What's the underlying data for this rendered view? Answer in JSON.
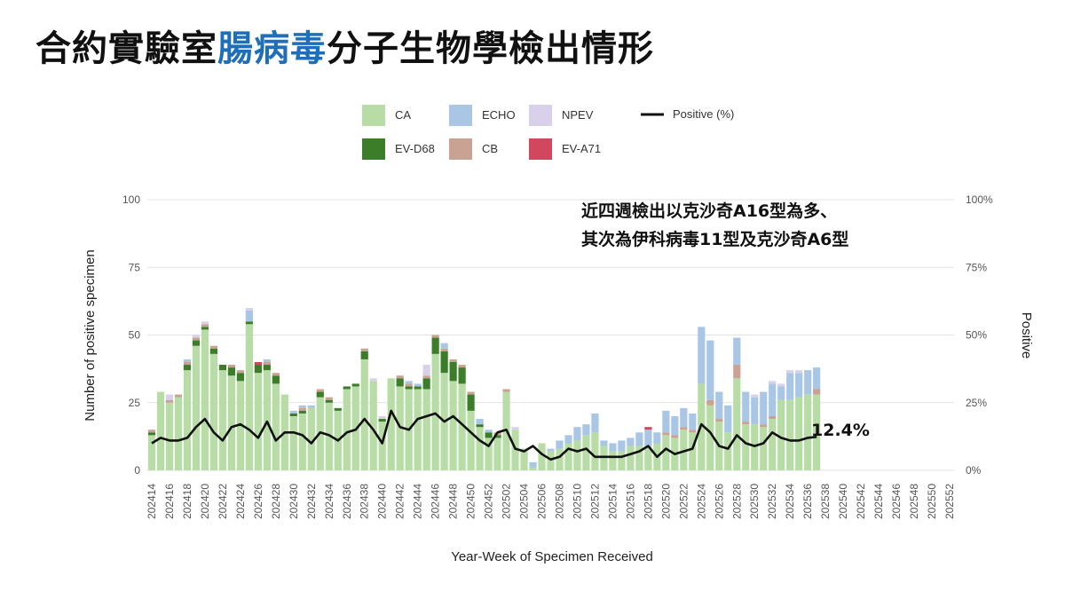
{
  "title": {
    "part1": "合約實驗室",
    "part2": "腸病毒",
    "part3": "分子生物學檢出情形"
  },
  "colors": {
    "CA": "#b7dca5",
    "EV-D68": "#3b7d28",
    "ECHO": "#a9c7e5",
    "CB": "#c9a293",
    "NPEV": "#d9d1ea",
    "EV-A71": "#d0475e",
    "title_highlight": "#1f6fb8"
  },
  "annotation": {
    "line1": "近四週檢出以克沙奇A16型為多、",
    "line2": "其次為伊科病毒11型及克沙奇A6型"
  },
  "chart_data": {
    "type": "bar",
    "stacked": true,
    "xlabel": "Year-Week of Specimen Received",
    "ylabel": "Number of positive specimen",
    "y2label": "Positive",
    "ylim": [
      0,
      100
    ],
    "y2lim": [
      0,
      100
    ],
    "yticks": [
      "0",
      "25",
      "50",
      "75",
      "100"
    ],
    "y2ticks": [
      "0%",
      "25%",
      "50%",
      "75%",
      "100%"
    ],
    "legend_position": "top-center",
    "legend": [
      "CA",
      "EV-D68",
      "CB",
      "ECHO",
      "NPEV",
      "EV-A71",
      "Positive (%)"
    ],
    "last_label": "12.4%",
    "x_tick_labels": [
      "202414",
      "202416",
      "202418",
      "202420",
      "202422",
      "202424",
      "202426",
      "202428",
      "202430",
      "202432",
      "202434",
      "202436",
      "202438",
      "202440",
      "202442",
      "202444",
      "202446",
      "202448",
      "202450",
      "202452",
      "202502",
      "202504",
      "202506",
      "202508",
      "202510",
      "202512",
      "202514",
      "202516",
      "202518",
      "202520",
      "202522",
      "202524",
      "202526",
      "202528",
      "202530",
      "202532",
      "202534",
      "202536",
      "202538",
      "202540",
      "202542",
      "202544",
      "202546",
      "202548",
      "202550",
      "202552"
    ],
    "weeks": [
      "202414",
      "202415",
      "202416",
      "202417",
      "202418",
      "202419",
      "202420",
      "202421",
      "202422",
      "202423",
      "202424",
      "202425",
      "202426",
      "202427",
      "202428",
      "202429",
      "202430",
      "202431",
      "202432",
      "202433",
      "202434",
      "202435",
      "202436",
      "202437",
      "202438",
      "202439",
      "202440",
      "202441",
      "202442",
      "202443",
      "202444",
      "202445",
      "202446",
      "202447",
      "202448",
      "202449",
      "202450",
      "202451",
      "202452",
      "202501",
      "202502",
      "202503",
      "202504",
      "202505",
      "202506",
      "202507",
      "202508",
      "202509",
      "202510",
      "202511",
      "202512",
      "202513",
      "202514",
      "202515",
      "202516",
      "202517",
      "202518",
      "202519",
      "202520",
      "202521",
      "202522",
      "202523",
      "202524",
      "202525",
      "202526",
      "202527",
      "202528",
      "202529",
      "202530",
      "202531",
      "202532",
      "202533",
      "202534",
      "202535",
      "202536",
      "202537",
      "202538",
      "202539",
      "202540",
      "202541",
      "202542",
      "202543",
      "202544",
      "202545",
      "202546",
      "202547",
      "202548",
      "202549",
      "202550",
      "202551",
      "202552"
    ],
    "series": [
      {
        "name": "CA",
        "values": [
          13,
          29,
          25,
          27,
          37,
          46,
          52,
          43,
          37,
          35,
          33,
          54,
          36,
          37,
          32,
          28,
          20,
          21,
          23,
          27,
          25,
          22,
          30,
          31,
          41,
          33,
          18,
          34,
          31,
          30,
          30,
          30,
          43,
          36,
          33,
          32,
          22,
          16,
          12,
          12,
          29,
          15,
          8,
          1,
          10,
          7,
          8,
          10,
          11,
          13,
          14,
          9,
          7,
          7,
          9,
          9,
          9,
          10,
          13,
          12,
          15,
          14,
          32,
          24,
          18,
          14,
          34,
          17,
          17,
          16,
          19,
          26,
          26,
          27,
          28,
          28
        ]
      },
      {
        "name": "EV-D68",
        "values": [
          1,
          0,
          0,
          0,
          2,
          2,
          1,
          2,
          2,
          3,
          3,
          1,
          3,
          2,
          3,
          0,
          1,
          1,
          0,
          2,
          1,
          1,
          1,
          1,
          3,
          0,
          1,
          0,
          3,
          1,
          1,
          4,
          6,
          8,
          7,
          6,
          6,
          1,
          2,
          1,
          0,
          0,
          0,
          0,
          0,
          0,
          0,
          0,
          0,
          0,
          0,
          0,
          0,
          0,
          0,
          0,
          0,
          0,
          0,
          0,
          0,
          0,
          0,
          0,
          0,
          0,
          0,
          0,
          0,
          0,
          0,
          0,
          0,
          0,
          0,
          0
        ]
      },
      {
        "name": "CB",
        "values": [
          1,
          0,
          1,
          1,
          1,
          1,
          1,
          1,
          0,
          1,
          1,
          0,
          0,
          1,
          1,
          0,
          0,
          1,
          0,
          1,
          1,
          0,
          0,
          0,
          1,
          0,
          0,
          0,
          1,
          1,
          0,
          1,
          1,
          1,
          1,
          1,
          1,
          0,
          0,
          1,
          1,
          0,
          0,
          0,
          0,
          0,
          0,
          0,
          0,
          0,
          0,
          0,
          0,
          0,
          0,
          0,
          0,
          0,
          1,
          1,
          1,
          1,
          0,
          2,
          1,
          0,
          5,
          1,
          0,
          1,
          1,
          0,
          0,
          0,
          0,
          2
        ]
      },
      {
        "name": "ECHO",
        "values": [
          0,
          0,
          0,
          0,
          1,
          0,
          0,
          0,
          0,
          0,
          0,
          4,
          0,
          1,
          0,
          0,
          1,
          1,
          1,
          0,
          0,
          0,
          0,
          0,
          0,
          0,
          0,
          0,
          0,
          1,
          1,
          0,
          0,
          2,
          0,
          0,
          0,
          2,
          1,
          0,
          0,
          0,
          0,
          2,
          0,
          1,
          3,
          3,
          5,
          4,
          7,
          2,
          3,
          4,
          3,
          5,
          6,
          4,
          8,
          7,
          7,
          6,
          21,
          22,
          10,
          10,
          10,
          11,
          10,
          12,
          12,
          5,
          10,
          9,
          9,
          8
        ]
      },
      {
        "name": "NPEV",
        "values": [
          0,
          0,
          2,
          0,
          0,
          1,
          1,
          0,
          0,
          0,
          0,
          1,
          0,
          0,
          0,
          0,
          0,
          0,
          0,
          0,
          0,
          0,
          0,
          0,
          0,
          1,
          1,
          0,
          0,
          0,
          0,
          4,
          0,
          0,
          0,
          0,
          0,
          0,
          0,
          0,
          0,
          1,
          0,
          0,
          0,
          0,
          0,
          0,
          0,
          0,
          0,
          0,
          0,
          0,
          0,
          0,
          0,
          0,
          0,
          0,
          0,
          0,
          0,
          0,
          0,
          0,
          0,
          0,
          1,
          0,
          1,
          1,
          1,
          1,
          0,
          0
        ]
      },
      {
        "name": "EV-A71",
        "values": [
          0,
          0,
          0,
          0,
          0,
          0,
          0,
          0,
          0,
          0,
          0,
          0,
          1,
          0,
          0,
          0,
          0,
          0,
          0,
          0,
          0,
          0,
          0,
          0,
          0,
          0,
          0,
          0,
          0,
          0,
          0,
          0,
          0,
          0,
          0,
          0,
          0,
          0,
          0,
          0,
          0,
          0,
          0,
          0,
          0,
          0,
          0,
          0,
          0,
          0,
          0,
          0,
          0,
          0,
          0,
          0,
          1,
          0,
          0,
          0,
          0,
          0,
          0,
          0,
          0,
          0,
          0,
          0,
          0,
          0,
          0,
          0,
          0,
          0,
          0,
          0
        ]
      },
      {
        "name": "Positive (%)",
        "type": "line",
        "values": [
          10,
          12,
          11,
          11,
          12,
          16,
          19,
          14,
          11,
          16,
          17,
          15,
          12,
          18,
          11,
          14,
          14,
          13,
          10,
          14,
          13,
          11,
          14,
          15,
          19,
          15,
          10,
          22,
          16,
          15,
          19,
          20,
          21,
          18,
          20,
          17,
          14,
          11,
          9,
          14,
          15,
          8,
          7,
          9,
          6,
          4,
          5,
          8,
          7,
          8,
          5,
          5,
          5,
          5,
          6,
          7,
          9,
          5,
          8,
          6,
          7,
          8,
          17,
          14,
          9,
          8,
          13,
          10,
          9,
          10,
          14,
          12,
          11,
          11,
          12,
          12.4
        ]
      }
    ]
  }
}
